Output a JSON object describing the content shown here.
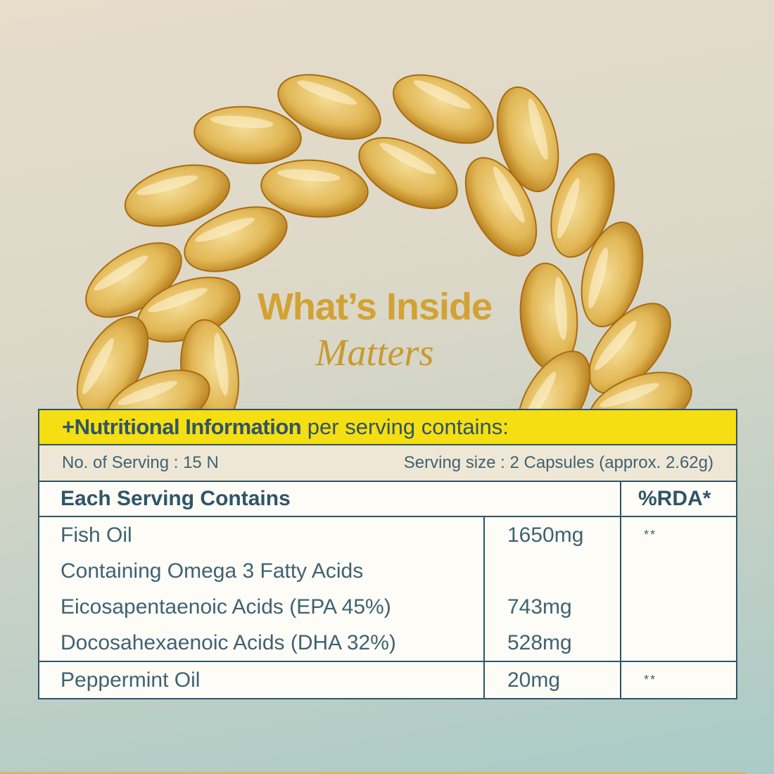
{
  "headline": {
    "line1": "What’s Inside",
    "line2": "Matters",
    "color": "#d3a233"
  },
  "table": {
    "header_bold": "+Nutritional Information",
    "header_rest": " per serving contains:",
    "header_color": "#f5de12",
    "servings": "No. of Serving : 15 N",
    "serving_size": "Serving size : 2 Capsules (approx. 2.62g)",
    "col_contents": "Each Serving Contains",
    "col_rda": "%RDA*",
    "rows": [
      {
        "name": "Fish Oil",
        "amount": "1650mg",
        "rda": "**"
      },
      {
        "name": "Containing Omega 3 Fatty Acids",
        "amount": "",
        "rda": ""
      },
      {
        "name": "Eicosapentaenoic Acids (EPA 45%)",
        "amount": "743mg",
        "rda": ""
      },
      {
        "name": "Docosahexaenoic Acids (DHA 32%)",
        "amount": "528mg",
        "rda": ""
      },
      {
        "name": "Peppermint Oil",
        "amount": "20mg",
        "rda": "**"
      }
    ]
  },
  "image": {
    "subject": "fish-oil-capsules"
  }
}
